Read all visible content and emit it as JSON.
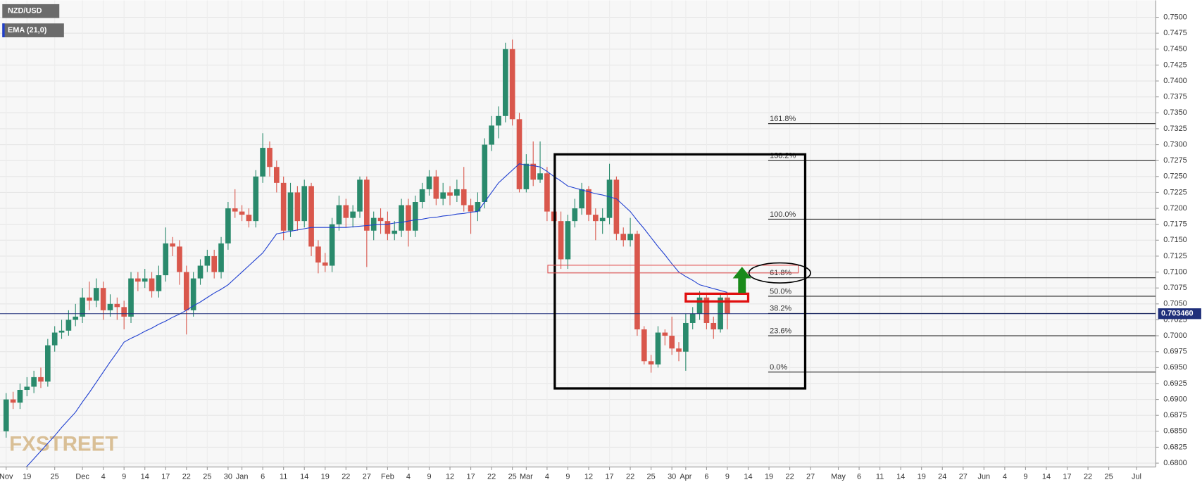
{
  "chart_data": {
    "type": "candlestick",
    "categories": [
      "Nov",
      null,
      null,
      "19",
      null,
      null,
      null,
      "25",
      null,
      null,
      null,
      "Dec",
      null,
      null,
      "4",
      null,
      null,
      "9",
      null,
      null,
      "14",
      null,
      null,
      "17",
      null,
      null,
      "22",
      null,
      null,
      "25",
      null,
      null,
      "30",
      null,
      "Jan",
      null,
      null,
      "6",
      null,
      null,
      "11",
      null,
      null,
      "14",
      null,
      null,
      "19",
      null,
      null,
      "22",
      null,
      null,
      "27",
      null,
      null,
      "Feb",
      null,
      null,
      "4",
      null,
      null,
      "9",
      null,
      null,
      "12",
      null,
      null,
      "17",
      null,
      null,
      "22",
      null,
      null,
      "25",
      null,
      "Mar",
      null,
      null,
      "4",
      null,
      null,
      "9",
      null,
      null,
      "12",
      null,
      null,
      "17",
      null,
      null,
      "22",
      null,
      null,
      "25",
      null,
      null,
      "30",
      null,
      "Apr",
      null,
      null,
      "6",
      null,
      null,
      "9",
      null,
      null,
      "14",
      null,
      null,
      "19",
      null,
      null,
      "22",
      null,
      null,
      "27",
      null,
      null,
      null,
      "May",
      null,
      null,
      "6",
      null,
      null,
      "11",
      null,
      null,
      "14",
      null,
      null,
      "19",
      null,
      null,
      "24",
      null,
      null,
      "27",
      null,
      null,
      "Jun",
      null,
      null,
      "4",
      null,
      null,
      "9",
      null,
      null,
      "14",
      null,
      null,
      "17",
      null,
      null,
      "22",
      null,
      null,
      "25",
      null,
      null,
      null,
      "Jul",
      null,
      null
    ],
    "series": [
      {
        "name": "NZD/USD",
        "up_color": "#2a8a6c",
        "down_color": "#d9574c",
        "open": [
          0.685,
          0.69,
          0.6895,
          0.6915,
          0.692,
          0.6935,
          0.6928,
          0.6985,
          0.7005,
          0.7008,
          0.7025,
          0.703,
          0.706,
          0.7055,
          0.7075,
          0.704,
          0.705,
          0.7045,
          0.703,
          0.709,
          0.7085,
          0.709,
          0.707,
          0.7095,
          0.7145,
          0.714,
          0.71,
          0.704,
          0.709,
          0.711,
          0.7125,
          0.71,
          0.7145,
          0.72,
          0.7195,
          0.719,
          0.718,
          0.725,
          0.7295,
          0.7265,
          0.724,
          0.7165,
          0.7225,
          0.718,
          0.7235,
          0.714,
          0.7115,
          0.711,
          0.7175,
          0.7205,
          0.7185,
          0.7195,
          0.7245,
          0.7165,
          0.7185,
          0.718,
          0.716,
          0.7165,
          0.7205,
          0.7165,
          0.721,
          0.723,
          0.725,
          0.7215,
          0.7225,
          0.722,
          0.723,
          0.7205,
          0.7195,
          0.721,
          0.73,
          0.733,
          0.7345,
          0.745,
          0.734,
          0.723,
          0.727,
          0.7245,
          0.7255,
          0.7195,
          0.718,
          0.712,
          0.718,
          0.72,
          0.723,
          0.719,
          0.718,
          0.7185,
          0.7245,
          0.716,
          0.715,
          0.716,
          0.701,
          0.696,
          0.6955,
          0.7005,
          0.7,
          0.698,
          0.6975,
          0.702,
          0.7035,
          0.706,
          0.702,
          0.701,
          0.706,
          null,
          null,
          null,
          null,
          null,
          null,
          null,
          null,
          null,
          null,
          null,
          null,
          null,
          null,
          null,
          null,
          null,
          null,
          null,
          null,
          null,
          null,
          null,
          null,
          null,
          null,
          null,
          null,
          null,
          null,
          null,
          null,
          null,
          null,
          null,
          null,
          null,
          null,
          null,
          null,
          null,
          null,
          null,
          null,
          null,
          null,
          null,
          null,
          null,
          null,
          null,
          null,
          null,
          null,
          null,
          null,
          null,
          null,
          null,
          null,
          null
        ],
        "high": [
          0.691,
          0.6912,
          0.6925,
          0.6935,
          0.6945,
          0.695,
          0.6995,
          0.7015,
          0.7025,
          0.704,
          0.705,
          0.7075,
          0.7085,
          0.709,
          0.7085,
          0.7065,
          0.706,
          0.7055,
          0.71,
          0.71,
          0.7105,
          0.71,
          0.711,
          0.717,
          0.7155,
          0.715,
          0.711,
          0.71,
          0.712,
          0.7135,
          0.7135,
          0.7155,
          0.721,
          0.723,
          0.7205,
          0.72,
          0.726,
          0.7318,
          0.7305,
          0.7275,
          0.725,
          0.724,
          0.7235,
          0.7245,
          0.724,
          0.715,
          0.713,
          0.7185,
          0.722,
          0.7215,
          0.7205,
          0.725,
          0.725,
          0.7195,
          0.72,
          0.7195,
          0.718,
          0.7215,
          0.7215,
          0.722,
          0.724,
          0.726,
          0.726,
          0.724,
          0.7235,
          0.7245,
          0.7265,
          0.7215,
          0.7225,
          0.731,
          0.7345,
          0.736,
          0.746,
          0.7465,
          0.735,
          0.7285,
          0.7305,
          0.7305,
          0.7265,
          0.72,
          0.7195,
          0.719,
          0.7215,
          0.724,
          0.7235,
          0.72,
          0.72,
          0.727,
          0.725,
          0.717,
          0.7185,
          0.7165,
          0.7015,
          0.697,
          0.7015,
          0.701,
          0.703,
          0.699,
          0.7035,
          0.7045,
          0.707,
          0.7065,
          0.703,
          0.7065,
          0.7065,
          null,
          null,
          null,
          null,
          null,
          null,
          null,
          null,
          null,
          null,
          null,
          null,
          null,
          null,
          null,
          null,
          null,
          null,
          null,
          null,
          null,
          null,
          null,
          null,
          null,
          null,
          null,
          null,
          null,
          null,
          null,
          null,
          null,
          null,
          null,
          null,
          null,
          null,
          null,
          null,
          null,
          null,
          null,
          null,
          null,
          null,
          null,
          null,
          null,
          null,
          null,
          null,
          null,
          null,
          null,
          null,
          null,
          null,
          null,
          null,
          null
        ],
        "low": [
          0.684,
          0.6885,
          0.6885,
          0.6905,
          0.691,
          0.6918,
          0.692,
          0.6975,
          0.6995,
          0.7,
          0.7015,
          0.702,
          0.704,
          0.7045,
          0.7025,
          0.703,
          0.7025,
          0.701,
          0.702,
          0.707,
          0.7075,
          0.706,
          0.706,
          0.7085,
          0.7125,
          0.708,
          0.7002,
          0.703,
          0.708,
          0.71,
          0.709,
          0.709,
          0.7135,
          0.7185,
          0.718,
          0.717,
          0.717,
          0.724,
          0.725,
          0.7225,
          0.715,
          0.7155,
          0.7165,
          0.717,
          0.7125,
          0.7098,
          0.71,
          0.71,
          0.7165,
          0.717,
          0.717,
          0.7185,
          0.7108,
          0.715,
          0.716,
          0.715,
          0.715,
          0.7155,
          0.714,
          0.7155,
          0.72,
          0.722,
          0.7205,
          0.7205,
          0.7205,
          0.721,
          0.7195,
          0.716,
          0.718,
          0.72,
          0.729,
          0.731,
          0.7335,
          0.733,
          0.7225,
          0.7225,
          0.7235,
          0.724,
          0.718,
          0.717,
          0.7105,
          0.7105,
          0.717,
          0.719,
          0.718,
          0.715,
          0.716,
          0.7175,
          0.715,
          0.714,
          0.714,
          0.7,
          0.6955,
          0.6942,
          0.695,
          0.6985,
          0.697,
          0.696,
          0.6945,
          0.701,
          0.7025,
          0.701,
          0.6995,
          0.7005,
          0.701,
          null,
          null,
          null,
          null,
          null,
          null,
          null,
          null,
          null,
          null,
          null,
          null,
          null,
          null,
          null,
          null,
          null,
          null,
          null,
          null,
          null,
          null,
          null,
          null,
          null,
          null,
          null,
          null,
          null,
          null,
          null,
          null,
          null,
          null,
          null,
          null,
          null,
          null,
          null,
          null,
          null,
          null,
          null,
          null,
          null,
          null,
          null,
          null,
          null,
          null,
          null,
          null,
          null,
          null,
          null,
          null,
          null,
          null,
          null,
          null,
          null
        ],
        "close": [
          0.69,
          0.6895,
          0.6915,
          0.692,
          0.6935,
          0.6928,
          0.6985,
          0.7005,
          0.7008,
          0.7025,
          0.703,
          0.706,
          0.7055,
          0.7075,
          0.704,
          0.705,
          0.7045,
          0.703,
          0.709,
          0.7085,
          0.709,
          0.707,
          0.7095,
          0.7145,
          0.714,
          0.71,
          0.704,
          0.709,
          0.711,
          0.7125,
          0.71,
          0.7145,
          0.72,
          0.7195,
          0.719,
          0.718,
          0.725,
          0.7295,
          0.7265,
          0.724,
          0.7165,
          0.7225,
          0.718,
          0.7235,
          0.714,
          0.7115,
          0.711,
          0.7175,
          0.7205,
          0.7185,
          0.7195,
          0.7245,
          0.7165,
          0.7185,
          0.718,
          0.716,
          0.7165,
          0.7205,
          0.7165,
          0.721,
          0.723,
          0.725,
          0.7215,
          0.7225,
          0.722,
          0.723,
          0.7205,
          0.7195,
          0.721,
          0.73,
          0.733,
          0.7345,
          0.745,
          0.734,
          0.723,
          0.727,
          0.7245,
          0.7255,
          0.7195,
          0.718,
          0.712,
          0.718,
          0.72,
          0.723,
          0.719,
          0.718,
          0.7185,
          0.7245,
          0.716,
          0.715,
          0.716,
          0.701,
          0.696,
          0.6955,
          0.7005,
          0.7,
          0.698,
          0.6975,
          0.702,
          0.7035,
          0.706,
          0.702,
          0.701,
          0.706,
          0.7035,
          null,
          null,
          null,
          null,
          null,
          null,
          null,
          null,
          null,
          null,
          null,
          null,
          null,
          null,
          null,
          null,
          null,
          null,
          null,
          null,
          null,
          null,
          null,
          null,
          null,
          null,
          null,
          null,
          null,
          null,
          null,
          null,
          null,
          null,
          null,
          null,
          null,
          null,
          null,
          null,
          null,
          null,
          null,
          null,
          null,
          null,
          null,
          null,
          null,
          null,
          null,
          null,
          null,
          null,
          null,
          null,
          null,
          null,
          null,
          null,
          null
        ]
      },
      {
        "name": "EMA (21,0)",
        "type": "line",
        "color": "#1f3fd0",
        "values": [
          0.677,
          0.6778,
          0.6787,
          0.6795,
          0.6807,
          0.6819,
          0.6831,
          0.6843,
          0.6856,
          0.6868,
          0.688,
          0.6896,
          0.6911,
          0.6927,
          0.6943,
          0.6959,
          0.6974,
          0.699,
          0.6996,
          0.7001,
          0.7007,
          0.7012,
          0.7018,
          0.7023,
          0.7029,
          0.7034,
          0.704,
          0.7047,
          0.7053,
          0.706,
          0.7067,
          0.7073,
          0.708,
          0.709,
          0.71,
          0.711,
          0.712,
          0.713,
          0.7145,
          0.716,
          0.7162,
          0.7164,
          0.7166,
          0.7168,
          0.717,
          0.717,
          0.717,
          0.717,
          0.717,
          0.717,
          0.7171,
          0.7172,
          0.7173,
          0.7174,
          0.7175,
          0.7175,
          0.7177,
          0.7178,
          0.718,
          0.7182,
          0.7183,
          0.7185,
          0.7186,
          0.7188,
          0.7189,
          0.7191,
          0.7192,
          0.7194,
          0.7195,
          0.721,
          0.7225,
          0.724,
          0.725,
          0.726,
          0.727,
          0.7268,
          0.7267,
          0.7265,
          0.7258,
          0.725,
          0.7243,
          0.7235,
          0.7232,
          0.7229,
          0.7226,
          0.7223,
          0.7221,
          0.7218,
          0.7215,
          0.7205,
          0.7195,
          0.7181,
          0.7168,
          0.7154,
          0.714,
          0.7127,
          0.7113,
          0.71,
          0.7093,
          0.7087,
          0.708,
          0.7077,
          0.7074,
          0.7071,
          0.7068,
          null,
          null,
          null,
          null,
          null,
          null,
          null,
          null,
          null,
          null,
          null,
          null,
          null,
          null,
          null,
          null,
          null,
          null,
          null,
          null,
          null,
          null,
          null,
          null,
          null,
          null,
          null,
          null,
          null,
          null,
          null,
          null,
          null,
          null,
          null,
          null,
          null,
          null,
          null,
          null,
          null,
          null,
          null,
          null,
          null,
          null,
          null,
          null,
          null,
          null,
          null,
          null,
          null,
          null,
          null,
          null,
          null,
          null,
          null,
          null,
          null
        ]
      }
    ],
    "ylim": [
      0.68,
      0.75
    ],
    "yticks": [
      {
        "value": 0.68,
        "label": "0.6800"
      },
      {
        "value": 0.6825,
        "label": "0.6825"
      },
      {
        "value": 0.685,
        "label": "0.6850"
      },
      {
        "value": 0.6875,
        "label": "0.6875"
      },
      {
        "value": 0.69,
        "label": "0.6900"
      },
      {
        "value": 0.6925,
        "label": "0.6925"
      },
      {
        "value": 0.695,
        "label": "0.6950"
      },
      {
        "value": 0.6975,
        "label": "0.6975"
      },
      {
        "value": 0.7,
        "label": "0.7000"
      },
      {
        "value": 0.7025,
        "label": "0.7025"
      },
      {
        "value": 0.705,
        "label": "0.7050"
      },
      {
        "value": 0.7075,
        "label": "0.7075"
      },
      {
        "value": 0.71,
        "label": "0.7100"
      },
      {
        "value": 0.7125,
        "label": "0.7125"
      },
      {
        "value": 0.715,
        "label": "0.7150"
      },
      {
        "value": 0.7175,
        "label": "0.7175"
      },
      {
        "value": 0.72,
        "label": "0.7200"
      },
      {
        "value": 0.7225,
        "label": "0.7225"
      },
      {
        "value": 0.725,
        "label": "0.7250"
      },
      {
        "value": 0.7275,
        "label": "0.7275"
      },
      {
        "value": 0.73,
        "label": "0.7300"
      },
      {
        "value": 0.7325,
        "label": "0.7325"
      },
      {
        "value": 0.735,
        "label": "0.7350"
      },
      {
        "value": 0.7375,
        "label": "0.7375"
      },
      {
        "value": 0.74,
        "label": "0.7400"
      },
      {
        "value": 0.7425,
        "label": "0.7425"
      },
      {
        "value": 0.745,
        "label": "0.7450"
      },
      {
        "value": 0.7475,
        "label": "0.7475"
      },
      {
        "value": 0.75,
        "label": "0.7500"
      }
    ],
    "grid": true,
    "last_price": {
      "value": 0.70346,
      "label": "0.703460",
      "color": "#1f2f7a"
    },
    "fib_levels": [
      {
        "label": "161.8%",
        "value": 0.7333
      },
      {
        "label": "138.2%",
        "value": 0.7275
      },
      {
        "label": "100.0%",
        "value": 0.7183
      },
      {
        "label": "61.8%",
        "value": 0.7091
      },
      {
        "label": "50.0%",
        "value": 0.7062
      },
      {
        "label": "38.2%",
        "value": 0.7035
      },
      {
        "label": "23.6%",
        "value": 0.7
      },
      {
        "label": "0.0%",
        "value": 0.6943
      }
    ],
    "watermark": "FXSTREET"
  }
}
